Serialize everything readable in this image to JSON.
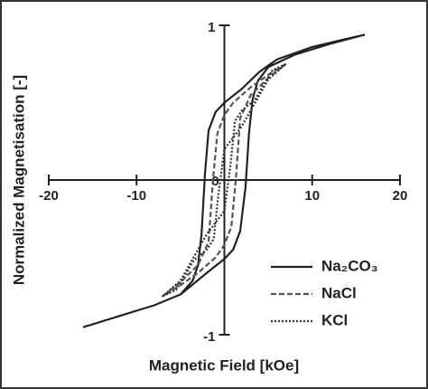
{
  "chart_data": {
    "type": "line",
    "x_label": "Magnetic Field [kOe]",
    "y_label": "Normalized Magnetisation [-]",
    "xlim": [
      -20,
      20
    ],
    "ylim": [
      -1,
      1
    ],
    "xticks": [
      -20,
      -10,
      0,
      10,
      20
    ],
    "yticks": [
      -1,
      1
    ],
    "legend": "lower right",
    "series": [
      {
        "name": "Na₂CO₃",
        "color": "#222222",
        "dash": "solid",
        "x": [
          16,
          10,
          6,
          4,
          2,
          0,
          -1,
          -1.8,
          -2.2,
          -2.6,
          -3,
          -3.6,
          -5,
          -8,
          -12,
          -16,
          -12,
          -8,
          -5,
          -2,
          0,
          1,
          1.8,
          2.4,
          2.8,
          3.2,
          3.8,
          5,
          8,
          12,
          16
        ],
        "values": [
          0.94,
          0.86,
          0.78,
          0.7,
          0.59,
          0.5,
          0.44,
          0.32,
          0.05,
          -0.35,
          -0.55,
          -0.65,
          -0.74,
          -0.81,
          -0.88,
          -0.95,
          -0.88,
          -0.81,
          -0.74,
          -0.6,
          -0.51,
          -0.45,
          -0.33,
          -0.05,
          0.3,
          0.52,
          0.64,
          0.73,
          0.81,
          0.88,
          0.94
        ]
      },
      {
        "name": "NaCl",
        "color": "#555555",
        "dash": "dashed",
        "x": [
          7,
          5,
          3,
          1,
          0,
          -0.8,
          -1.3,
          -1.8,
          -3,
          -5,
          -7,
          -5,
          -3,
          -1,
          0,
          0.8,
          1.3,
          1.8,
          3,
          5,
          7
        ],
        "values": [
          0.75,
          0.68,
          0.6,
          0.5,
          0.42,
          0.3,
          0,
          -0.4,
          -0.55,
          -0.66,
          -0.75,
          -0.68,
          -0.6,
          -0.5,
          -0.42,
          -0.3,
          0,
          0.4,
          0.55,
          0.66,
          0.75
        ]
      },
      {
        "name": "KCl",
        "color": "#333333",
        "dash": "dotted",
        "x": [
          7,
          5.5,
          4.5,
          3.5,
          2,
          1.2,
          0.7,
          0,
          -2,
          -4,
          -5,
          -7,
          -5.5,
          -4.5,
          -3.5,
          -2,
          -1.2,
          -0.7,
          0,
          2,
          4,
          5,
          7
        ],
        "values": [
          0.75,
          0.71,
          0.62,
          0.52,
          0.45,
          0.38,
          0.1,
          -0.2,
          -0.35,
          -0.55,
          -0.65,
          -0.75,
          -0.71,
          -0.62,
          -0.52,
          -0.45,
          -0.38,
          -0.1,
          0.2,
          0.35,
          0.55,
          0.65,
          0.75
        ]
      }
    ]
  }
}
